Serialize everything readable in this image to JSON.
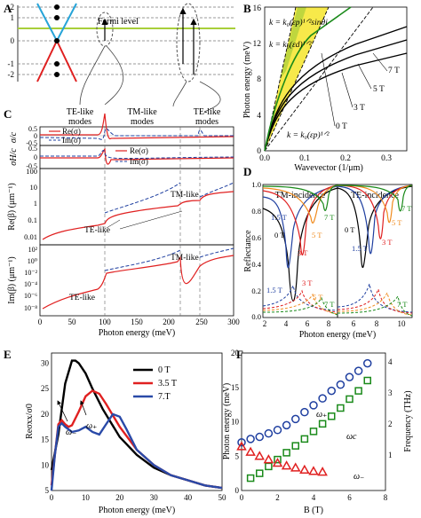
{
  "panels": {
    "A": {
      "letter": "A",
      "yticks": [
        "2",
        "1",
        "0",
        "-1",
        "-2"
      ],
      "fermi_label": "Fermi level"
    },
    "B": {
      "letter": "B",
      "ylabel": "Photon energy (meV)",
      "xlabel": "Wavevector (1/μm)",
      "yticks": [
        "0",
        "4",
        "8",
        "12",
        "16"
      ],
      "xticks": [
        "0.0",
        "0.1",
        "0.2",
        "0.3"
      ],
      "eq_top": "k = k₀(εp)¹ᐟ²sinθi",
      "eq_mid": "k = k₀(εd)¹ᐟ²",
      "eq_bot": "k = k₀(εp)¹ᐟ²",
      "curve_labels": [
        "7 T",
        "5 T",
        "3 T",
        "0 T"
      ]
    },
    "C": {
      "letter": "C",
      "region_labels": [
        [
          "TE-like",
          "modes"
        ],
        [
          "TM-like",
          "modes"
        ],
        [
          "TE-like",
          "modes"
        ]
      ],
      "sub1_ylabel": "σ/c",
      "sub2_ylabel": "σH/c",
      "sub3_ylabel": "Re(β)  (μm⁻¹)",
      "sub4_ylabel": "Im(β)  (μm⁻¹)",
      "legend_re": "Re(σ)",
      "legend_im": "Im(σ)",
      "legend_re2": "Re(σ)",
      "legend_im2": "Im(σ)",
      "tm_like": "TM-like",
      "te_like": "TE-like",
      "tm_like2": "TM-like",
      "te_like2": "TE-like",
      "sub1_yticks": [
        "0.5",
        "0",
        "-0.5"
      ],
      "sub2_yticks": [
        "0.5",
        "0",
        "-0.5"
      ],
      "sub3_yticks": [
        "100",
        "10",
        "1",
        "0.1",
        "0.01"
      ],
      "sub4_yticks": [
        "10²",
        "10⁰",
        "10⁻²",
        "10⁻⁴",
        "10⁻⁶",
        "10⁻⁸"
      ],
      "xticks": [
        "0",
        "50",
        "100",
        "150",
        "200",
        "250",
        "300"
      ],
      "xlabel": "Photon energy (meV)"
    },
    "D": {
      "letter": "D",
      "title_left": "TM-incidence",
      "title_right": "TE-incidence",
      "ylabel": "Reflectance",
      "xlabel": "Photon energy (meV)",
      "yticks": [
        "1.0",
        "0.8",
        "0.6",
        "0.4",
        "0.2",
        "0.0"
      ],
      "xticks_left": [
        "2",
        "4",
        "6",
        "8"
      ],
      "xticks_right": [
        "6",
        "8",
        "10"
      ],
      "labels_left": [
        "0 T",
        "1.5 T",
        "3 T",
        "5 T",
        "7 T",
        "1.5 T",
        "3 T",
        "5 T",
        "7 T"
      ],
      "labels_right": [
        "0 T",
        "1.5 T",
        "3 T",
        "5 T",
        "7 T",
        "7 T"
      ]
    },
    "E": {
      "letter": "E",
      "ylabel": "Reσxx/σ0",
      "xlabel": "Photon energy (meV)",
      "yticks": [
        "30",
        "25",
        "20",
        "15",
        "10",
        "5"
      ],
      "xticks": [
        "0",
        "10",
        "20",
        "30",
        "40",
        "50"
      ],
      "legend": [
        "0 T",
        "3.5 T",
        "7.T"
      ],
      "ann_minus": "ω₋",
      "ann_plus": "ω₊"
    },
    "F": {
      "letter": "F",
      "ylabel": "Photon energy (meV)",
      "ylabel_right": "Frequency (THz)",
      "xlabel": "B (T)",
      "yticks": [
        "0",
        "5",
        "10",
        "15",
        "20"
      ],
      "yticks_right": [
        "1",
        "2",
        "3",
        "4"
      ],
      "xticks": [
        "0",
        "2",
        "4",
        "6",
        "8"
      ],
      "label_plus": "ω₊",
      "label_c": "ωc",
      "label_minus": "ω₋"
    }
  },
  "colors": {
    "red": "#e02020",
    "blue": "#1f3fa0",
    "green": "#1a8a1a",
    "orange": "#f08a1c",
    "cyan": "#2aa6d6",
    "yellow": "#f7e94a",
    "olive": "#b5d23c",
    "lightgreen": "#9dc93f"
  },
  "chart_data": [
    {
      "panel": "E",
      "type": "line",
      "xlabel": "Photon energy (meV)",
      "ylabel": "Reσxx/σ0",
      "xlim": [
        0,
        50
      ],
      "ylim": [
        5,
        32
      ],
      "series": [
        {
          "name": "0 T",
          "x": [
            0,
            2,
            4,
            6,
            7,
            8,
            10,
            12,
            15,
            20,
            25,
            30,
            35,
            40,
            45,
            50
          ],
          "y": [
            9,
            16,
            26,
            30.5,
            30.5,
            30,
            28,
            25,
            21,
            15.5,
            12,
            9.5,
            8,
            7,
            6,
            5.5
          ]
        },
        {
          "name": "3.5 T",
          "x": [
            0,
            1,
            2,
            3,
            4,
            5,
            6,
            8,
            10,
            12,
            14,
            16,
            20,
            25,
            30,
            35,
            40,
            45,
            50
          ],
          "y": [
            6,
            12,
            18,
            18.8,
            18,
            17.5,
            17.8,
            20.5,
            23.5,
            24.6,
            24,
            22,
            17.5,
            13,
            10,
            8,
            7,
            6,
            5.5
          ]
        },
        {
          "name": "7.T",
          "x": [
            0,
            1,
            2,
            3,
            4,
            6,
            8,
            10,
            12,
            14,
            16,
            18,
            20,
            22,
            25,
            30,
            35,
            40,
            45,
            50
          ],
          "y": [
            5,
            12,
            17.5,
            18.2,
            17.5,
            16.5,
            16.8,
            17.5,
            16.5,
            16,
            18,
            20,
            19.5,
            17,
            13,
            10,
            8,
            7,
            6,
            5.5
          ]
        }
      ]
    },
    {
      "panel": "F",
      "type": "scatter",
      "xlabel": "B (T)",
      "ylabel": "Photon energy (meV)",
      "xlim": [
        0,
        8
      ],
      "ylim": [
        0,
        20
      ],
      "series": [
        {
          "name": "ω₊",
          "marker": "circle",
          "x": [
            0,
            0.5,
            1,
            1.5,
            2,
            2.5,
            3,
            3.5,
            4,
            4.5,
            5,
            5.5,
            6,
            6.5,
            7
          ],
          "y": [
            7,
            7.5,
            7.8,
            8.3,
            8.8,
            9.5,
            10.4,
            11.4,
            12.4,
            13.4,
            14.5,
            15.4,
            16.5,
            17.4,
            18.5
          ]
        },
        {
          "name": "ωc",
          "marker": "square",
          "x": [
            0.5,
            1,
            1.5,
            2,
            2.5,
            3,
            3.5,
            4,
            4.5,
            5,
            5.5,
            6,
            6.5,
            7
          ],
          "y": [
            1.8,
            2.5,
            3.5,
            4.5,
            5.5,
            6.5,
            7.5,
            8.6,
            9.7,
            10.8,
            12,
            13.3,
            14.5,
            16
          ]
        },
        {
          "name": "ω₋",
          "marker": "triangle",
          "x": [
            0,
            0.5,
            1,
            1.5,
            2,
            2.5,
            3,
            3.5,
            4,
            4.5
          ],
          "y": [
            6.4,
            5.6,
            5,
            4.5,
            4,
            3.6,
            3.3,
            3,
            2.8,
            2.7
          ]
        }
      ]
    }
  ]
}
